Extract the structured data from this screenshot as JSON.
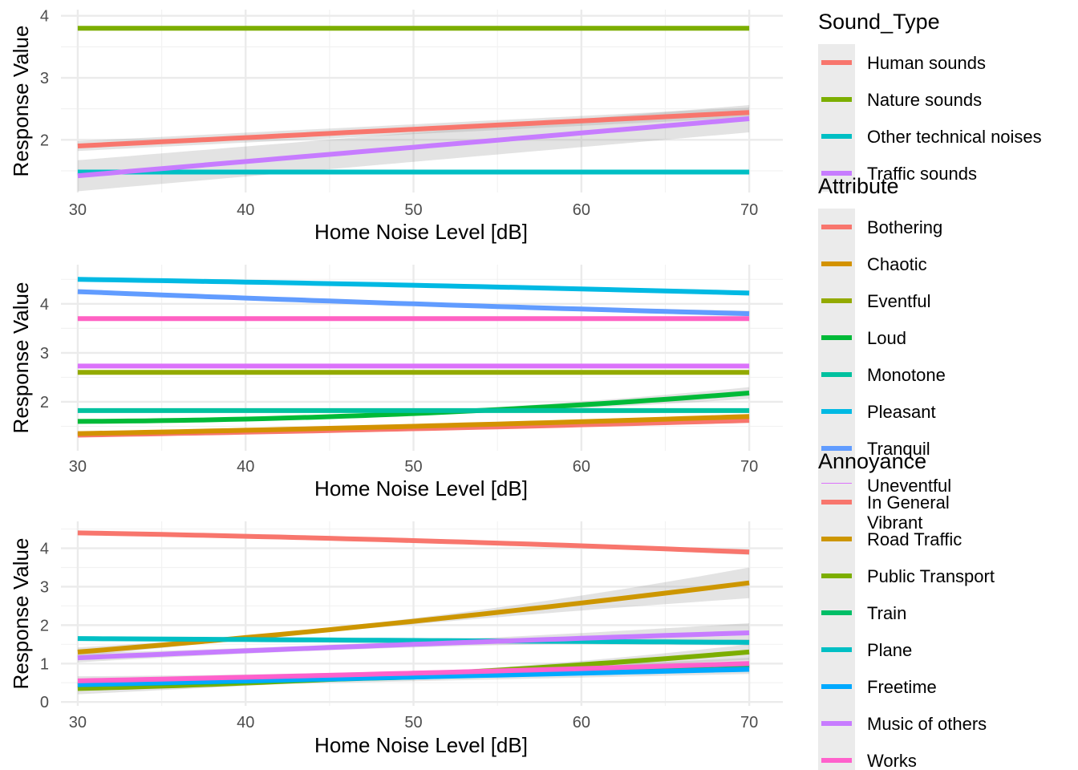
{
  "chart_data": [
    {
      "type": "line",
      "xlabel": "Home Noise Level [dB]",
      "ylabel": "Response Value",
      "x_ticks": [
        30,
        40,
        50,
        60,
        70
      ],
      "y_ticks": [
        2,
        3,
        4
      ],
      "xlim": [
        29,
        72
      ],
      "ylim": [
        1.15,
        4.1
      ],
      "grid": true,
      "confidence_band": true,
      "legend": {
        "title": "Sound_Type",
        "placement": "right"
      },
      "series": [
        {
          "name": "Human sounds",
          "color": "#F8766D",
          "x": [
            30,
            70
          ],
          "y": [
            1.9,
            2.44
          ],
          "se": [
            0.08,
            0.08
          ]
        },
        {
          "name": "Nature sounds",
          "color": "#7CAE00",
          "x": [
            30,
            70
          ],
          "y": [
            3.8,
            3.8
          ],
          "se": [
            0.03,
            0.03
          ]
        },
        {
          "name": "Other technical noises",
          "color": "#00BFC4",
          "x": [
            30,
            70
          ],
          "y": [
            1.48,
            1.48
          ],
          "se": [
            0.03,
            0.03
          ]
        },
        {
          "name": "Traffic sounds",
          "color": "#C77CFF",
          "x": [
            30,
            70
          ],
          "y": [
            1.42,
            2.34
          ],
          "se": [
            0.25,
            0.22
          ]
        }
      ]
    },
    {
      "type": "line",
      "xlabel": "Home Noise Level [dB]",
      "ylabel": "Response Value",
      "x_ticks": [
        30,
        40,
        50,
        60,
        70
      ],
      "y_ticks": [
        2,
        3,
        4
      ],
      "xlim": [
        29,
        72
      ],
      "ylim": [
        1.0,
        4.8
      ],
      "grid": true,
      "confidence_band": true,
      "legend": {
        "title": "Attribute",
        "placement": "right"
      },
      "series": [
        {
          "name": "Bothering",
          "color": "#F8766D",
          "x": [
            30,
            50,
            70
          ],
          "y": [
            1.32,
            1.45,
            1.62
          ],
          "se": [
            0.04,
            0.03,
            0.05
          ]
        },
        {
          "name": "Chaotic",
          "color": "#D39200",
          "x": [
            30,
            50,
            70
          ],
          "y": [
            1.35,
            1.5,
            1.7
          ],
          "se": [
            0.04,
            0.03,
            0.05
          ]
        },
        {
          "name": "Eventful",
          "color": "#93AA00",
          "x": [
            30,
            70
          ],
          "y": [
            2.6,
            2.6
          ],
          "se": [
            0.02,
            0.02
          ]
        },
        {
          "name": "Loud",
          "color": "#00BA38",
          "x": [
            30,
            50,
            70
          ],
          "y": [
            1.6,
            1.76,
            2.18
          ],
          "se": [
            0.05,
            0.04,
            0.12
          ]
        },
        {
          "name": "Monotone",
          "color": "#00C19F",
          "x": [
            30,
            70
          ],
          "y": [
            1.82,
            1.82
          ],
          "se": [
            0.02,
            0.02
          ]
        },
        {
          "name": "Pleasant",
          "color": "#00B9E3",
          "x": [
            30,
            50,
            70
          ],
          "y": [
            4.5,
            4.38,
            4.22
          ],
          "se": [
            0.04,
            0.03,
            0.05
          ]
        },
        {
          "name": "Tranquil",
          "color": "#619CFF",
          "x": [
            30,
            50,
            70
          ],
          "y": [
            4.25,
            4.0,
            3.8
          ],
          "se": [
            0.05,
            0.03,
            0.06
          ]
        },
        {
          "name": "Uneventful",
          "color": "#DB72FB",
          "x": [
            30,
            70
          ],
          "y": [
            2.73,
            2.73
          ],
          "se": [
            0.02,
            0.02
          ]
        },
        {
          "name": "Vibrant",
          "color": "#FF61C3",
          "x": [
            30,
            70
          ],
          "y": [
            3.7,
            3.7
          ],
          "se": [
            0.02,
            0.02
          ]
        }
      ]
    },
    {
      "type": "line",
      "xlabel": "Home Noise Level [dB]",
      "ylabel": "Response Value",
      "x_ticks": [
        30,
        40,
        50,
        60,
        70
      ],
      "y_ticks": [
        0,
        1,
        2,
        3,
        4
      ],
      "xlim": [
        29,
        72
      ],
      "ylim": [
        -0.1,
        4.7
      ],
      "grid": true,
      "confidence_band": true,
      "legend": {
        "title": "Annoyance",
        "placement": "right"
      },
      "series": [
        {
          "name": "In General",
          "color": "#F8766D",
          "x": [
            30,
            50,
            70
          ],
          "y": [
            4.4,
            4.2,
            3.9
          ],
          "se": [
            0.06,
            0.04,
            0.07
          ]
        },
        {
          "name": "Road Traffic",
          "color": "#CD9600",
          "x": [
            30,
            50,
            70
          ],
          "y": [
            1.3,
            2.1,
            3.1
          ],
          "se": [
            0.12,
            0.08,
            0.4
          ]
        },
        {
          "name": "Public Transport",
          "color": "#7CAE00",
          "x": [
            30,
            50,
            70
          ],
          "y": [
            0.35,
            0.7,
            1.3
          ],
          "se": [
            0.15,
            0.06,
            0.2
          ]
        },
        {
          "name": "Train",
          "color": "#00BE67",
          "x": [
            30,
            50,
            70
          ],
          "y": [
            0.45,
            0.65,
            0.95
          ],
          "se": [
            0.1,
            0.05,
            0.1
          ]
        },
        {
          "name": "Plane",
          "color": "#00BFC4",
          "x": [
            30,
            70
          ],
          "y": [
            1.65,
            1.55
          ],
          "se": [
            0.06,
            0.08
          ]
        },
        {
          "name": "Freetime",
          "color": "#00A9FF",
          "x": [
            30,
            70
          ],
          "y": [
            0.45,
            0.85
          ],
          "se": [
            0.1,
            0.12
          ]
        },
        {
          "name": "Music of others",
          "color": "#C77CFF",
          "x": [
            30,
            50,
            70
          ],
          "y": [
            1.15,
            1.5,
            1.8
          ],
          "se": [
            0.12,
            0.08,
            0.25
          ]
        },
        {
          "name": "Works",
          "color": "#FF61CC",
          "x": [
            30,
            50,
            70
          ],
          "y": [
            0.55,
            0.75,
            1.0
          ],
          "se": [
            0.12,
            0.06,
            0.15
          ]
        }
      ]
    }
  ]
}
